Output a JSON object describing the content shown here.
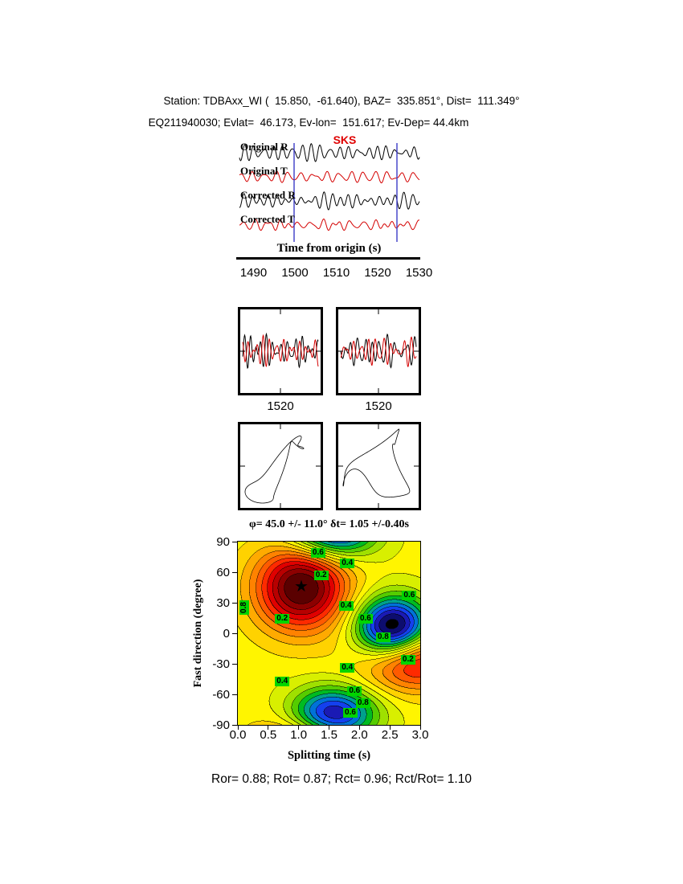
{
  "header": {
    "line1": "Station: TDBAxx_WI (  15.850,  -61.640), BAZ=  335.851°, Dist=  111.349°",
    "line2": "EQ211940030; Evlat=  46.173, Ev-lon=  151.617; Ev-Dep= 44.4km"
  },
  "seismograms": {
    "phase_label": "SKS",
    "traces": [
      {
        "label": "Original R",
        "color": "#000000"
      },
      {
        "label": "Original T",
        "color": "#d40000"
      },
      {
        "label": "Corrected R",
        "color": "#000000"
      },
      {
        "label": "Corrected T",
        "color": "#d40000"
      }
    ],
    "window_start_s": 1500,
    "window_end_s": 1525,
    "window_line_color": "#3c3cc8",
    "axis": {
      "label": "Time from origin (s)",
      "ticks": [
        "1490",
        "1500",
        "1510",
        "1520",
        "1530"
      ]
    }
  },
  "window_panels": {
    "left_tick": "1520",
    "right_tick": "1520"
  },
  "contour": {
    "title": "φ= 45.0 +/- 11.0° δt= 1.05 +/-0.40s",
    "xlabel": "Splitting time (s)",
    "ylabel": "Fast direction (degree)",
    "xticks": [
      "0.0",
      "0.5",
      "1.0",
      "1.5",
      "2.0",
      "2.5",
      "3.0"
    ],
    "yticks": [
      "90",
      "60",
      "30",
      "0",
      "-30",
      "-60",
      "-90"
    ],
    "star_icon": "★",
    "best_fit": {
      "fast_direction_deg": 45.0,
      "fast_direction_err_deg": 11.0,
      "split_time_s": 1.05,
      "split_time_err_s": 0.4
    },
    "labels": [
      {
        "text": "0.6",
        "dt": 1.32,
        "phi": 79
      },
      {
        "text": "0.4",
        "dt": 1.8,
        "phi": 69
      },
      {
        "text": "0.2",
        "dt": 1.37,
        "phi": 57
      },
      {
        "text": "0.8",
        "dt": 0.1,
        "phi": 25,
        "rot": true
      },
      {
        "text": "0.2",
        "dt": 0.73,
        "phi": 14
      },
      {
        "text": "0.4",
        "dt": 1.78,
        "phi": 27
      },
      {
        "text": "0.6",
        "dt": 2.1,
        "phi": 14
      },
      {
        "text": "0.6",
        "dt": 2.82,
        "phi": 37
      },
      {
        "text": "0.8",
        "dt": 2.39,
        "phi": -4
      },
      {
        "text": "0.2",
        "dt": 2.8,
        "phi": -26
      },
      {
        "text": "0.4",
        "dt": 1.8,
        "phi": -34
      },
      {
        "text": "0.4",
        "dt": 0.73,
        "phi": -47
      },
      {
        "text": "0.6",
        "dt": 1.92,
        "phi": -57
      },
      {
        "text": "0.8",
        "dt": 2.06,
        "phi": -69
      },
      {
        "text": "0.6",
        "dt": 1.85,
        "phi": -78
      }
    ]
  },
  "footer": {
    "text": "Ror= 0.88; Rot= 0.87; Rct= 0.96; Rct/Rot= 1.10"
  },
  "chart_data": [
    {
      "type": "line",
      "name": "seismogram-traces",
      "xlabel": "Time from origin (s)",
      "x_ticks": [
        1490,
        1500,
        1510,
        1520,
        1530
      ],
      "series": [
        {
          "name": "Original R"
        },
        {
          "name": "Original T"
        },
        {
          "name": "Corrected R"
        },
        {
          "name": "Corrected T"
        }
      ],
      "window_lines_s": [
        1500,
        1525
      ],
      "phase": "SKS"
    },
    {
      "type": "line",
      "name": "windowed-waveform-pairs",
      "panels": [
        {
          "x_tick": 1520
        },
        {
          "x_tick": 1520
        }
      ]
    },
    {
      "type": "scatter",
      "name": "particle-motion-hodograms",
      "panels": 2
    },
    {
      "type": "heatmap",
      "name": "splitting-misfit-surface",
      "title": "φ= 45.0 +/- 11.0° δt= 1.05 +/-0.40s",
      "xlabel": "Splitting time (s)",
      "ylabel": "Fast direction (degree)",
      "xlim": [
        0,
        3
      ],
      "ylim": [
        -90,
        90
      ],
      "x_ticks": [
        0.0,
        0.5,
        1.0,
        1.5,
        2.0,
        2.5,
        3.0
      ],
      "y_ticks": [
        90,
        60,
        30,
        0,
        -30,
        -60,
        -90
      ],
      "minimum": {
        "splitting_time_s": 1.05,
        "fast_direction_deg": 45
      },
      "contour_levels": [
        0.2,
        0.4,
        0.6,
        0.8
      ],
      "legend_position": "none",
      "grid": false
    },
    {
      "type": "table",
      "name": "correlation-stats",
      "values": {
        "Ror": 0.88,
        "Rot": 0.87,
        "Rct": 0.96,
        "Rct_over_Rot": 1.1
      }
    }
  ]
}
